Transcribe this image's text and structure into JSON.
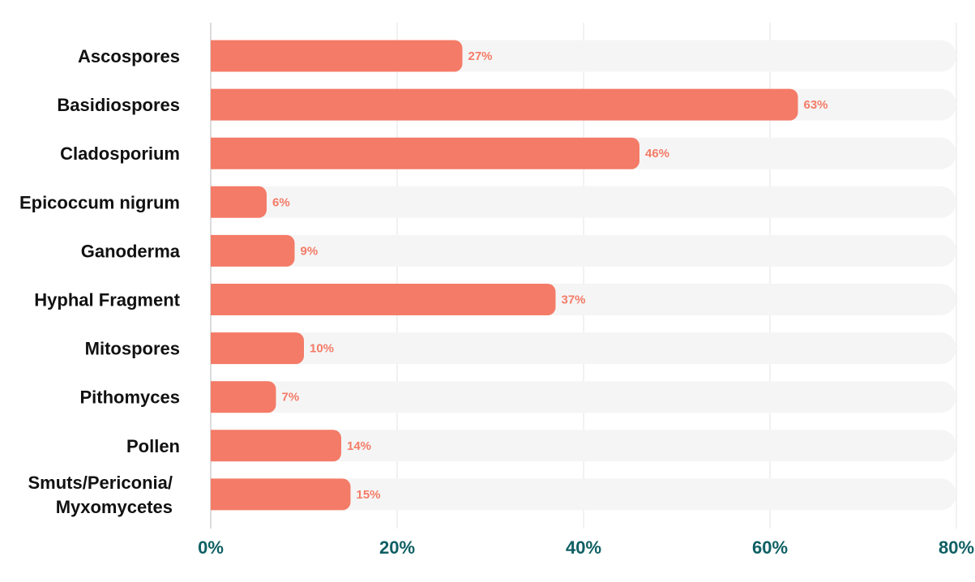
{
  "colors": {
    "bar": "#f47b67",
    "track": "#f5f5f5",
    "value_label": "#f47b67",
    "tick_label": "#0e5f63",
    "grid": "#e3e3e3",
    "axis": "#cfcfcf"
  },
  "chart_data": {
    "type": "bar",
    "orientation": "horizontal",
    "categories": [
      [
        "Ascospores"
      ],
      [
        "Basidiospores"
      ],
      [
        "Cladosporium"
      ],
      [
        "Epicoccum nigrum"
      ],
      [
        "Ganoderma"
      ],
      [
        "Hyphal Fragment"
      ],
      [
        "Mitospores"
      ],
      [
        "Pithomyces"
      ],
      [
        "Pollen"
      ],
      [
        "Smuts/Periconia/",
        "Myxomycetes"
      ]
    ],
    "values": [
      27,
      63,
      46,
      6,
      9,
      37,
      10,
      7,
      14,
      15
    ],
    "value_labels": [
      "27%",
      "63%",
      "46%",
      "6%",
      "9%",
      "37%",
      "10%",
      "7%",
      "14%",
      "15%"
    ],
    "xlim": [
      0,
      80
    ],
    "x_ticks": [
      0,
      20,
      40,
      60,
      80
    ],
    "x_tick_labels": [
      "0%",
      "20%",
      "40%",
      "60%",
      "80%"
    ],
    "grid": true,
    "title": "",
    "xlabel": "",
    "ylabel": ""
  }
}
